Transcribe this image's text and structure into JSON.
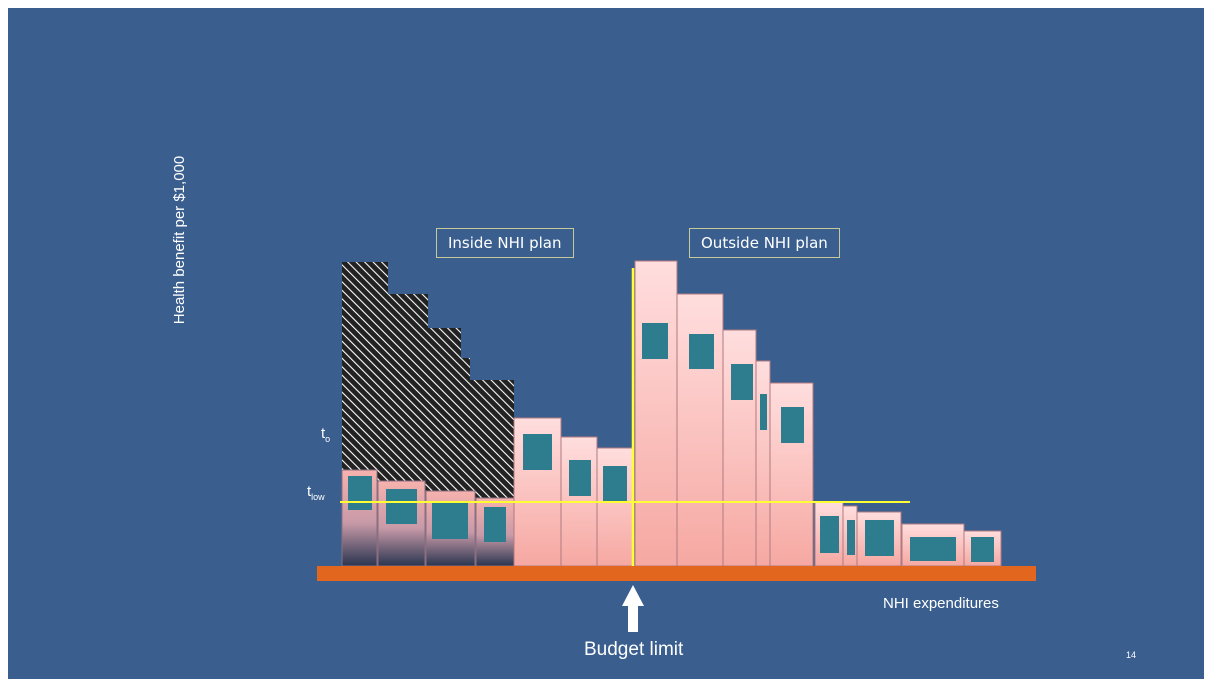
{
  "labels": {
    "inside_plan": "Inside NHI plan",
    "outside_plan": "Outside NHI plan",
    "y_axis": "Health benefit per $1,000",
    "x_axis": "NHI expenditures",
    "t_o": "t",
    "t_o_sub": "o",
    "t_low": "t",
    "t_low_sub": "low",
    "budget_limit": "Budget limit",
    "page_number": "14"
  },
  "colors": {
    "background": "#3a5f8f",
    "bar_top": "#ffd8d8",
    "bar_bottom": "#f7a7a2",
    "inner_box": "#2e7d8f",
    "threshold_line": "#ffff33",
    "axis_bar": "#e3661e",
    "hatch_stripe": "#ffffff",
    "hatch_bg": "#222222"
  },
  "icons": {
    "budget_arrow": "up-arrow-icon"
  }
}
